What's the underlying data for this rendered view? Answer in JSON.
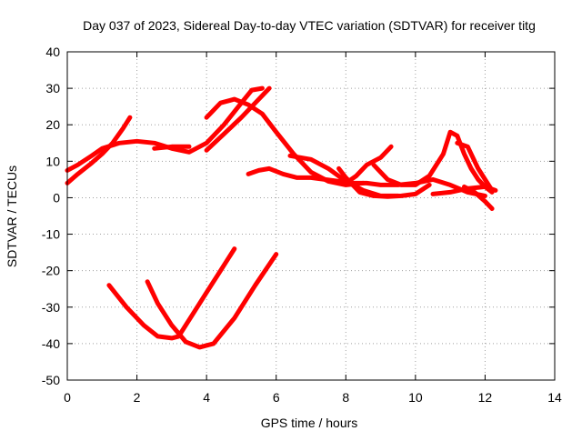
{
  "chart_data": {
    "type": "line",
    "title": "Day 037 of 2023, Sidereal Day-to-day VTEC variation (SDTVAR) for receiver titg",
    "xlabel": "GPS time / hours",
    "ylabel": "SDTVAR / TECUs",
    "xlim": [
      0,
      14
    ],
    "ylim": [
      -50,
      40
    ],
    "xticks": [
      0,
      2,
      4,
      6,
      8,
      10,
      12,
      14
    ],
    "yticks": [
      -50,
      -40,
      -30,
      -20,
      -10,
      0,
      10,
      20,
      30,
      40
    ],
    "grid": true,
    "grid_style": "dotted",
    "series_color": "#ff0000",
    "series": [
      {
        "x": [
          0.0,
          0.3,
          0.7,
          1.0,
          1.3,
          1.6,
          1.8
        ],
        "y": [
          4,
          6.5,
          9.5,
          12,
          15,
          19,
          22
        ]
      },
      {
        "x": [
          0.0,
          0.3,
          0.7,
          1.0,
          1.5,
          2.0,
          2.5,
          3.0,
          3.5,
          4.0,
          4.5,
          5.0,
          5.3,
          5.6
        ],
        "y": [
          7.5,
          9,
          11.5,
          13.5,
          15,
          15.5,
          15,
          13.5,
          12.5,
          15,
          20,
          26,
          29.5,
          30
        ]
      },
      {
        "x": [
          2.5,
          3.0,
          3.5
        ],
        "y": [
          13.5,
          14,
          14
        ]
      },
      {
        "x": [
          4.0,
          4.4,
          4.8,
          5.2,
          5.6,
          6.0,
          6.5,
          7.0,
          7.5,
          8.0,
          8.5
        ],
        "y": [
          22,
          26,
          27,
          25.5,
          23,
          18,
          12,
          7,
          4.5,
          3.5,
          4
        ]
      },
      {
        "x": [
          4.0,
          4.5,
          5.0,
          5.4,
          5.8
        ],
        "y": [
          13,
          17.5,
          22,
          26,
          30
        ]
      },
      {
        "x": [
          5.2,
          5.5,
          5.8,
          6.2,
          6.6,
          7.0,
          7.4,
          7.8,
          8.2,
          8.6,
          9.0,
          9.5,
          10.0,
          10.5,
          11.0,
          11.5,
          12.0
        ],
        "y": [
          6.5,
          7.5,
          8,
          6.5,
          5.5,
          5.5,
          5,
          4.5,
          4,
          4,
          3.5,
          3.5,
          4,
          5,
          3.5,
          1.5,
          0.5
        ]
      },
      {
        "x": [
          6.4,
          7.0,
          7.5,
          8.0,
          8.5,
          9.0,
          9.5
        ],
        "y": [
          11.5,
          10.5,
          8,
          4.5,
          2,
          0.5,
          0.5
        ]
      },
      {
        "x": [
          7.8,
          8.0,
          8.4,
          8.8,
          9.2,
          9.6,
          10.0,
          10.4
        ],
        "y": [
          8,
          5.5,
          1.5,
          0.5,
          0.3,
          0.5,
          1,
          3.5
        ]
      },
      {
        "x": [
          8.0,
          8.3,
          8.6,
          9.0,
          9.3
        ],
        "y": [
          4,
          6,
          9,
          11,
          14
        ]
      },
      {
        "x": [
          8.8,
          9.2,
          9.6,
          10.0,
          10.4,
          10.8,
          11.0,
          11.2,
          11.4,
          11.6,
          11.8,
          12.0,
          12.2
        ],
        "y": [
          9,
          5,
          3.5,
          3.5,
          6,
          12,
          18,
          17,
          12,
          8,
          5,
          3,
          1.5
        ]
      },
      {
        "x": [
          11.2,
          11.5,
          11.8,
          12.0,
          12.2
        ],
        "y": [
          15,
          14,
          8,
          5,
          2
        ]
      },
      {
        "x": [
          10.5,
          11.0,
          11.5,
          12.0,
          12.3
        ],
        "y": [
          1,
          1.5,
          2.5,
          3,
          2
        ]
      },
      {
        "x": [
          11.4,
          11.7,
          12.0,
          12.2
        ],
        "y": [
          3,
          1.5,
          -1,
          -3
        ]
      },
      {
        "x": [
          1.2,
          1.7,
          2.2,
          2.6,
          3.0,
          3.2,
          3.6,
          4.0,
          4.4,
          4.8
        ],
        "y": [
          -24,
          -30,
          -35,
          -38,
          -38.5,
          -38,
          -32,
          -26,
          -20,
          -14
        ]
      },
      {
        "x": [
          2.3,
          2.6,
          3.0,
          3.4,
          3.8,
          4.2,
          4.8,
          5.4,
          6.0
        ],
        "y": [
          -23,
          -29,
          -35,
          -39.5,
          -41,
          -40,
          -33,
          -24,
          -15.5
        ]
      }
    ]
  }
}
